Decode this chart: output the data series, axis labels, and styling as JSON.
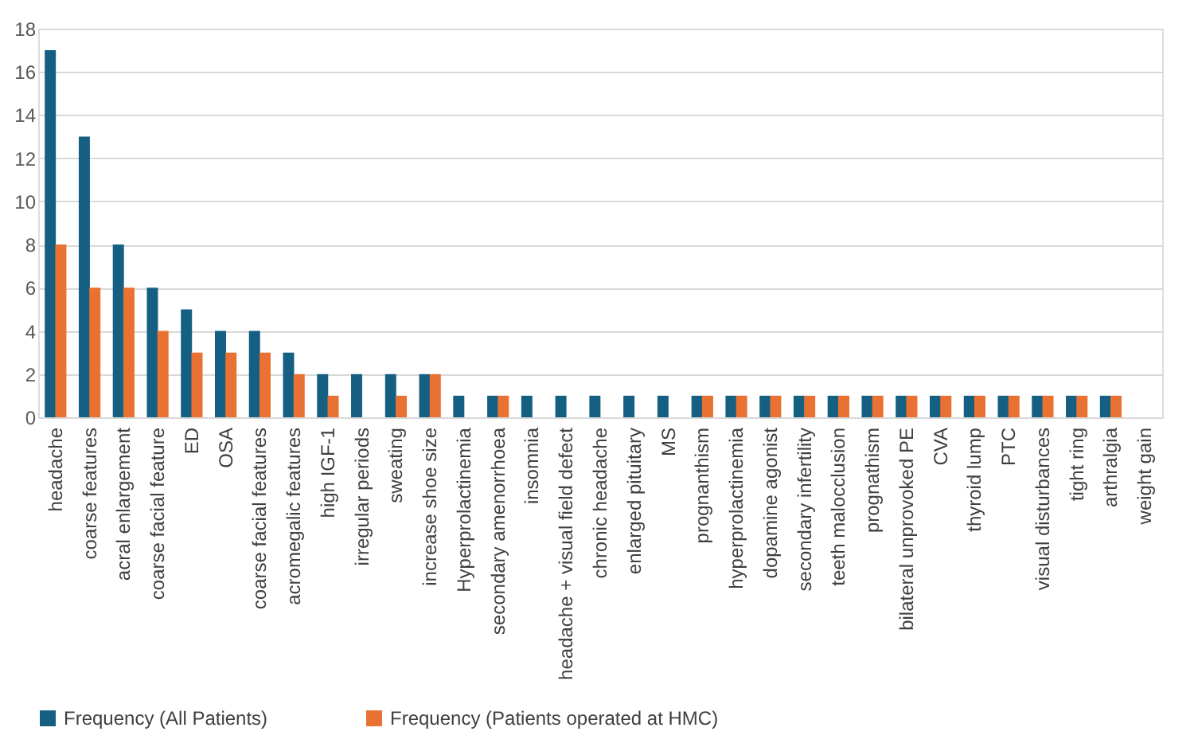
{
  "chart_data": {
    "type": "bar",
    "categories": [
      "headache",
      "coarse features",
      "acral enlargement",
      "coarse facial feature",
      "ED",
      "OSA",
      "coarse facial features",
      "acromegalic features",
      "high IGF-1",
      "irregular periods",
      "sweating",
      "increase shoe size",
      "Hyperprolactinemia",
      "secondary amenorrhoea",
      "insomnia",
      "headache + visual field defect",
      "chronic headache",
      "enlarged pituitary",
      "MS",
      "prognanthism",
      "hyperprolactinemia",
      "dopamine agonist",
      "secondary infertility",
      "teeth malocclusion",
      "prognathism",
      "bilateral unprovoked PE",
      "CVA",
      "thyroid lump",
      "PTC",
      "visual disturbances",
      "tight ring",
      "arthralgia",
      "weight gain"
    ],
    "series": [
      {
        "name": "Frequency (All Patients)",
        "color": "#156082",
        "values": [
          17,
          13,
          8,
          6,
          5,
          4,
          4,
          3,
          2,
          2,
          2,
          2,
          1,
          1,
          1,
          1,
          1,
          1,
          1,
          1,
          1,
          1,
          1,
          1,
          1,
          1,
          1,
          1,
          1,
          1,
          1,
          1,
          0
        ]
      },
      {
        "name": "Frequency (Patients operated at HMC)",
        "color": "#e97132",
        "values": [
          8,
          6,
          6,
          4,
          3,
          3,
          3,
          2,
          1,
          0,
          1,
          2,
          0,
          1,
          0,
          0,
          0,
          0,
          0,
          1,
          1,
          1,
          1,
          1,
          1,
          1,
          1,
          1,
          1,
          1,
          1,
          1,
          0
        ]
      }
    ],
    "ylim": [
      0,
      18
    ],
    "yticks": [
      0,
      2,
      4,
      6,
      8,
      10,
      12,
      14,
      16,
      18
    ],
    "grid": "y",
    "legend": "bottom"
  }
}
